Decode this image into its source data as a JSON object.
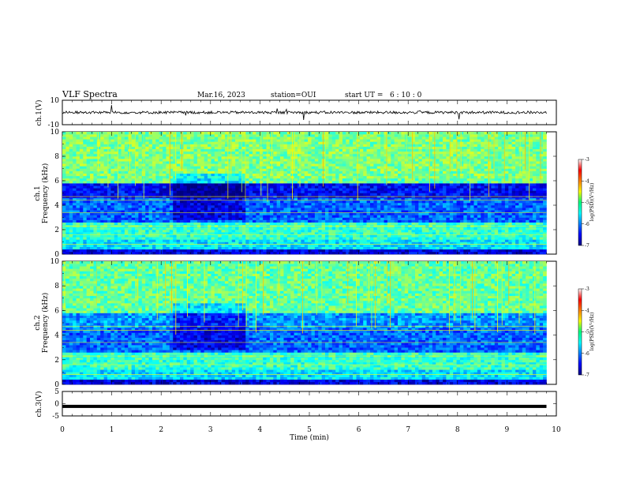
{
  "header": {
    "title": "VLF Spectra",
    "date": "Mar.16, 2023",
    "station": "station=OUI",
    "start": "start UT =   6 : 10 : 0"
  },
  "chart_data": [
    {
      "type": "line",
      "panel": "ch1-waveform",
      "ylabel": "ch.1(V)",
      "ylim": [
        -10,
        10
      ],
      "yticks": [
        10,
        -10
      ],
      "x_range_min": [
        0,
        9.8
      ],
      "baseline_V": 0
    },
    {
      "type": "heatmap",
      "panel": "ch1-spectrogram",
      "ylabel": "ch.1",
      "ylabel2": "Frequency (kHz)",
      "ylim": [
        0,
        10
      ],
      "yticks": [
        0,
        2,
        4,
        6,
        8,
        10
      ],
      "x_range_min": [
        0,
        9.8
      ],
      "colorbar": {
        "label": "log(PSD)(V²/Hz)",
        "range": [
          -7,
          -3
        ],
        "ticks": [
          "-3",
          "-4",
          "-5",
          "-6",
          "-7"
        ]
      }
    },
    {
      "type": "heatmap",
      "panel": "ch2-spectrogram",
      "ylabel": "ch.2",
      "ylabel2": "Frequency (kHz)",
      "ylim": [
        0,
        10
      ],
      "yticks": [
        0,
        2,
        4,
        6,
        8,
        10
      ],
      "x_range_min": [
        0,
        9.8
      ],
      "colorbar": {
        "label": "log(PSD)(V²/Hz)",
        "range": [
          -7,
          -3
        ],
        "ticks": [
          "-3",
          "-4",
          "-5",
          "-6",
          "-7"
        ]
      }
    },
    {
      "type": "line",
      "panel": "ch3-waveform",
      "ylabel": "ch.3(V)",
      "ylim": [
        -5,
        5
      ],
      "yticks": [
        5,
        0,
        -5
      ],
      "x_range_min": [
        0,
        9.8
      ],
      "level_V": -1.1
    }
  ],
  "xaxis": {
    "label": "Time (min)",
    "ticks": [
      "0",
      "1",
      "2",
      "3",
      "4",
      "5",
      "6",
      "7",
      "8",
      "9",
      "10"
    ],
    "range": [
      0,
      10
    ]
  }
}
